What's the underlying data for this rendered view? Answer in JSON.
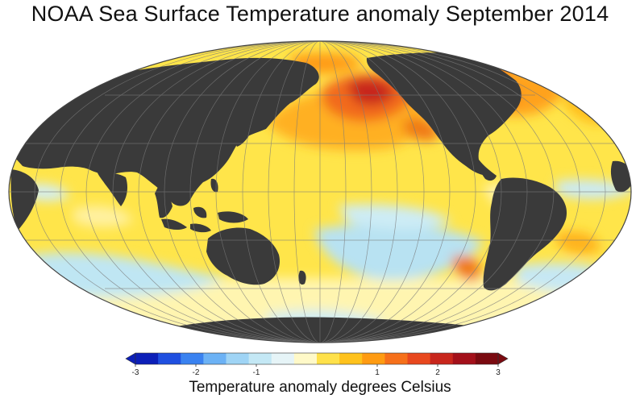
{
  "title": "NOAA Sea Surface Temperature anomaly September 2014",
  "projection": "Mollweide, Pacific-centered",
  "land_color": "#3a3a3a",
  "legend": {
    "title": "Temperature anomaly degrees Celsius",
    "range": [
      -3,
      3
    ],
    "ticks": [
      "-3",
      "-2",
      "-1",
      "1",
      "2",
      "3"
    ],
    "colors": [
      "#0c1fb8",
      "#1f4fe0",
      "#3a82f0",
      "#6cb2f5",
      "#9fd4f5",
      "#c4e8f5",
      "#e6f4f7",
      "#fff9c8",
      "#ffe14a",
      "#ffc21c",
      "#ff9b12",
      "#f6701a",
      "#e8481e",
      "#c8261c",
      "#a3101a",
      "#7a0a10"
    ]
  }
}
